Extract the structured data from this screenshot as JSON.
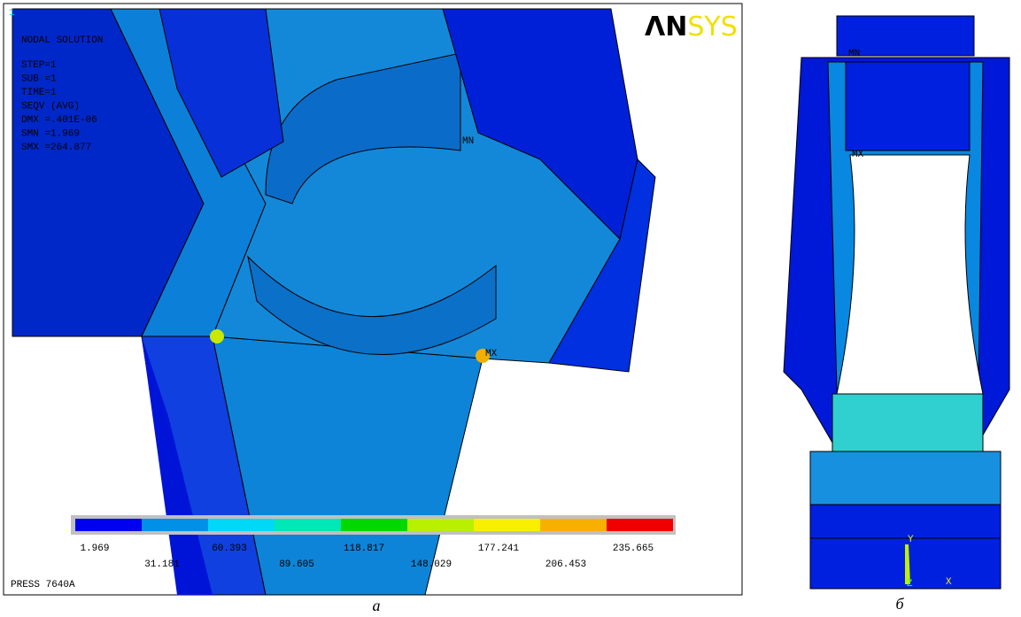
{
  "panel_a": {
    "window_number": "1",
    "brand": {
      "dark": "ΛN",
      "light": "SYS"
    },
    "info": [
      "NODAL SOLUTION",
      "STEP=1",
      "SUB =1",
      "TIME=1",
      "SEQV     (AVG)",
      "DMX =.401E-06",
      "SMN =1.969",
      "SMX =264.877"
    ],
    "min_marker": "MN",
    "max_marker": "MX",
    "legend": {
      "colors": [
        "#0000f0",
        "#0090e8",
        "#00d8f8",
        "#00e8b8",
        "#00d800",
        "#b8f000",
        "#f8f000",
        "#f8b000",
        "#f00000"
      ],
      "labels": [
        1.969,
        31.181,
        60.393,
        89.605,
        118.817,
        148.029,
        177.241,
        206.453,
        235.665
      ]
    },
    "status": "PRESS 7640A",
    "caption": "а"
  },
  "panel_b": {
    "min_marker": "MN",
    "max_marker": "MX",
    "axis_y": "Y",
    "axis_x": "X",
    "axis_z": "Z",
    "caption": "б"
  }
}
